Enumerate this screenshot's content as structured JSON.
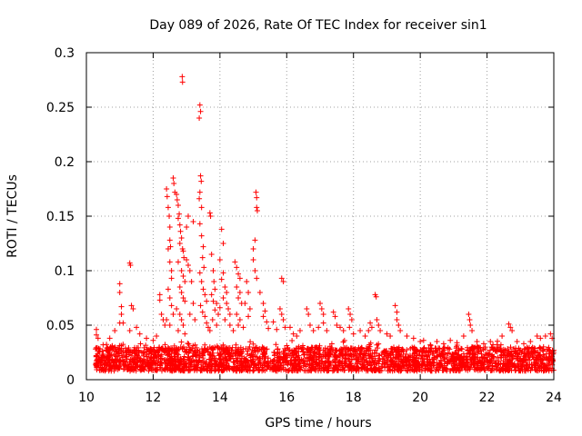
{
  "chart_data": {
    "type": "scatter",
    "title": "Day 089 of 2026, Rate Of TEC Index for receiver sin1",
    "xlabel": "GPS time / hours",
    "ylabel": "ROTI / TECUs",
    "xlim": [
      10,
      24
    ],
    "ylim": [
      0,
      0.3
    ],
    "x_ticks": [
      10,
      12,
      14,
      16,
      18,
      20,
      22,
      24
    ],
    "x_tick_labels": [
      "10",
      "12",
      "14",
      "16",
      "18",
      "20",
      "22",
      "24"
    ],
    "y_ticks": [
      0,
      0.05,
      0.1,
      0.15,
      0.2,
      0.25,
      0.3
    ],
    "y_tick_labels": [
      "0",
      "0.05",
      "0.1",
      "0.15",
      "0.2",
      "0.25",
      "0.3"
    ],
    "grid": true,
    "marker": "plus",
    "series": [
      {
        "name": "ROTI",
        "color": "#ff0000",
        "background_band": {
          "x_start": 10.25,
          "x_end": 24,
          "y_low": 0.008,
          "y_high": 0.03
        },
        "points": [
          [
            10.3,
            0.046
          ],
          [
            10.3,
            0.041
          ],
          [
            10.35,
            0.038
          ],
          [
            10.5,
            0.032
          ],
          [
            10.7,
            0.038
          ],
          [
            10.85,
            0.045
          ],
          [
            11.0,
            0.088
          ],
          [
            11.0,
            0.08
          ],
          [
            11.05,
            0.067
          ],
          [
            11.05,
            0.06
          ],
          [
            11.1,
            0.052
          ],
          [
            11.0,
            0.052
          ],
          [
            11.3,
            0.107
          ],
          [
            11.32,
            0.105
          ],
          [
            11.35,
            0.068
          ],
          [
            11.4,
            0.065
          ],
          [
            11.5,
            0.048
          ],
          [
            11.3,
            0.045
          ],
          [
            11.6,
            0.042
          ],
          [
            11.8,
            0.038
          ],
          [
            12.0,
            0.036
          ],
          [
            12.1,
            0.04
          ],
          [
            12.2,
            0.078
          ],
          [
            12.2,
            0.073
          ],
          [
            12.25,
            0.06
          ],
          [
            12.3,
            0.055
          ],
          [
            12.35,
            0.05
          ],
          [
            12.4,
            0.175
          ],
          [
            12.42,
            0.168
          ],
          [
            12.45,
            0.158
          ],
          [
            12.48,
            0.15
          ],
          [
            12.5,
            0.14
          ],
          [
            12.5,
            0.128
          ],
          [
            12.52,
            0.122
          ],
          [
            12.45,
            0.12
          ],
          [
            12.5,
            0.108
          ],
          [
            12.55,
            0.1
          ],
          [
            12.55,
            0.093
          ],
          [
            12.45,
            0.083
          ],
          [
            12.5,
            0.075
          ],
          [
            12.55,
            0.068
          ],
          [
            12.6,
            0.06
          ],
          [
            12.4,
            0.055
          ],
          [
            12.5,
            0.05
          ],
          [
            12.6,
            0.185
          ],
          [
            12.62,
            0.18
          ],
          [
            12.65,
            0.172
          ],
          [
            12.7,
            0.17
          ],
          [
            12.72,
            0.165
          ],
          [
            12.75,
            0.16
          ],
          [
            12.78,
            0.152
          ],
          [
            12.75,
            0.148
          ],
          [
            12.8,
            0.142
          ],
          [
            12.82,
            0.136
          ],
          [
            12.85,
            0.13
          ],
          [
            12.8,
            0.125
          ],
          [
            12.88,
            0.12
          ],
          [
            12.9,
            0.118
          ],
          [
            12.92,
            0.112
          ],
          [
            12.75,
            0.108
          ],
          [
            12.85,
            0.1
          ],
          [
            12.9,
            0.095
          ],
          [
            12.95,
            0.09
          ],
          [
            12.8,
            0.085
          ],
          [
            12.85,
            0.08
          ],
          [
            12.9,
            0.075
          ],
          [
            12.95,
            0.072
          ],
          [
            12.7,
            0.065
          ],
          [
            12.8,
            0.06
          ],
          [
            12.85,
            0.055
          ],
          [
            12.9,
            0.05
          ],
          [
            12.75,
            0.045
          ],
          [
            12.95,
            0.042
          ],
          [
            12.87,
            0.278
          ],
          [
            12.88,
            0.273
          ],
          [
            13.0,
            0.14
          ],
          [
            13.05,
            0.15
          ],
          [
            13.0,
            0.11
          ],
          [
            13.05,
            0.105
          ],
          [
            13.1,
            0.1
          ],
          [
            13.2,
            0.145
          ],
          [
            13.15,
            0.09
          ],
          [
            13.2,
            0.07
          ],
          [
            13.1,
            0.06
          ],
          [
            13.25,
            0.055
          ],
          [
            13.4,
            0.252
          ],
          [
            13.42,
            0.246
          ],
          [
            13.38,
            0.24
          ],
          [
            13.42,
            0.187
          ],
          [
            13.44,
            0.182
          ],
          [
            13.4,
            0.172
          ],
          [
            13.38,
            0.166
          ],
          [
            13.45,
            0.158
          ],
          [
            13.4,
            0.143
          ],
          [
            13.45,
            0.132
          ],
          [
            13.5,
            0.122
          ],
          [
            13.48,
            0.112
          ],
          [
            13.52,
            0.103
          ],
          [
            13.4,
            0.098
          ],
          [
            13.45,
            0.09
          ],
          [
            13.5,
            0.083
          ],
          [
            13.55,
            0.078
          ],
          [
            13.6,
            0.072
          ],
          [
            13.42,
            0.068
          ],
          [
            13.48,
            0.062
          ],
          [
            13.55,
            0.058
          ],
          [
            13.6,
            0.052
          ],
          [
            13.65,
            0.048
          ],
          [
            13.7,
            0.153
          ],
          [
            13.72,
            0.15
          ],
          [
            13.75,
            0.115
          ],
          [
            13.8,
            0.1
          ],
          [
            13.82,
            0.09
          ],
          [
            13.85,
            0.083
          ],
          [
            13.75,
            0.078
          ],
          [
            13.8,
            0.072
          ],
          [
            13.9,
            0.07
          ],
          [
            13.85,
            0.064
          ],
          [
            13.95,
            0.06
          ],
          [
            13.78,
            0.055
          ],
          [
            13.9,
            0.05
          ],
          [
            14.0,
            0.066
          ],
          [
            13.7,
            0.045
          ],
          [
            14.05,
            0.138
          ],
          [
            14.1,
            0.125
          ],
          [
            14.0,
            0.11
          ],
          [
            14.1,
            0.098
          ],
          [
            14.05,
            0.092
          ],
          [
            14.15,
            0.085
          ],
          [
            14.2,
            0.08
          ],
          [
            14.1,
            0.075
          ],
          [
            14.2,
            0.07
          ],
          [
            14.25,
            0.065
          ],
          [
            14.3,
            0.06
          ],
          [
            14.15,
            0.055
          ],
          [
            14.3,
            0.05
          ],
          [
            14.45,
            0.108
          ],
          [
            14.5,
            0.103
          ],
          [
            14.55,
            0.097
          ],
          [
            14.6,
            0.093
          ],
          [
            14.5,
            0.085
          ],
          [
            14.6,
            0.08
          ],
          [
            14.55,
            0.075
          ],
          [
            14.65,
            0.07
          ],
          [
            14.5,
            0.06
          ],
          [
            14.6,
            0.055
          ],
          [
            14.55,
            0.05
          ],
          [
            14.7,
            0.048
          ],
          [
            14.4,
            0.045
          ],
          [
            14.8,
            0.09
          ],
          [
            14.85,
            0.08
          ],
          [
            14.75,
            0.07
          ],
          [
            14.9,
            0.065
          ],
          [
            14.85,
            0.058
          ],
          [
            15.0,
            0.12
          ],
          [
            15.05,
            0.128
          ],
          [
            15.0,
            0.11
          ],
          [
            15.05,
            0.1
          ],
          [
            15.1,
            0.093
          ],
          [
            15.08,
            0.172
          ],
          [
            15.1,
            0.167
          ],
          [
            15.1,
            0.158
          ],
          [
            15.12,
            0.155
          ],
          [
            15.2,
            0.08
          ],
          [
            15.3,
            0.07
          ],
          [
            15.35,
            0.063
          ],
          [
            15.3,
            0.058
          ],
          [
            15.4,
            0.053
          ],
          [
            15.45,
            0.047
          ],
          [
            15.6,
            0.053
          ],
          [
            15.7,
            0.046
          ],
          [
            15.8,
            0.065
          ],
          [
            15.85,
            0.06
          ],
          [
            15.9,
            0.055
          ],
          [
            15.85,
            0.093
          ],
          [
            15.9,
            0.09
          ],
          [
            15.95,
            0.048
          ],
          [
            16.1,
            0.048
          ],
          [
            16.2,
            0.042
          ],
          [
            16.3,
            0.04
          ],
          [
            16.4,
            0.045
          ],
          [
            16.6,
            0.065
          ],
          [
            16.65,
            0.06
          ],
          [
            16.7,
            0.05
          ],
          [
            16.8,
            0.045
          ],
          [
            16.95,
            0.048
          ],
          [
            17.0,
            0.07
          ],
          [
            17.05,
            0.065
          ],
          [
            17.1,
            0.06
          ],
          [
            17.1,
            0.052
          ],
          [
            17.2,
            0.045
          ],
          [
            17.4,
            0.062
          ],
          [
            17.45,
            0.058
          ],
          [
            17.5,
            0.05
          ],
          [
            17.6,
            0.048
          ],
          [
            17.7,
            0.045
          ],
          [
            17.85,
            0.065
          ],
          [
            17.9,
            0.06
          ],
          [
            17.95,
            0.055
          ],
          [
            17.88,
            0.048
          ],
          [
            18.0,
            0.042
          ],
          [
            18.2,
            0.045
          ],
          [
            18.35,
            0.04
          ],
          [
            18.5,
            0.052
          ],
          [
            18.55,
            0.048
          ],
          [
            18.45,
            0.045
          ],
          [
            18.65,
            0.078
          ],
          [
            18.68,
            0.076
          ],
          [
            18.7,
            0.055
          ],
          [
            18.75,
            0.05
          ],
          [
            18.8,
            0.045
          ],
          [
            19.0,
            0.042
          ],
          [
            19.1,
            0.04
          ],
          [
            19.25,
            0.068
          ],
          [
            19.3,
            0.062
          ],
          [
            19.3,
            0.055
          ],
          [
            19.35,
            0.05
          ],
          [
            19.4,
            0.045
          ],
          [
            19.6,
            0.04
          ],
          [
            19.8,
            0.038
          ],
          [
            20.0,
            0.035
          ],
          [
            20.1,
            0.036
          ],
          [
            20.3,
            0.032
          ],
          [
            20.5,
            0.035
          ],
          [
            20.7,
            0.033
          ],
          [
            20.9,
            0.036
          ],
          [
            21.1,
            0.034
          ],
          [
            21.3,
            0.04
          ],
          [
            21.45,
            0.06
          ],
          [
            21.48,
            0.055
          ],
          [
            21.5,
            0.05
          ],
          [
            21.55,
            0.045
          ],
          [
            21.7,
            0.035
          ],
          [
            21.9,
            0.033
          ],
          [
            22.1,
            0.035
          ],
          [
            22.3,
            0.032
          ],
          [
            22.45,
            0.04
          ],
          [
            22.65,
            0.051
          ],
          [
            22.7,
            0.048
          ],
          [
            22.75,
            0.045
          ],
          [
            22.9,
            0.035
          ],
          [
            23.1,
            0.033
          ],
          [
            23.3,
            0.035
          ],
          [
            23.5,
            0.04
          ],
          [
            23.6,
            0.038
          ],
          [
            23.75,
            0.04
          ],
          [
            23.9,
            0.042
          ],
          [
            23.95,
            0.038
          ]
        ]
      }
    ]
  }
}
